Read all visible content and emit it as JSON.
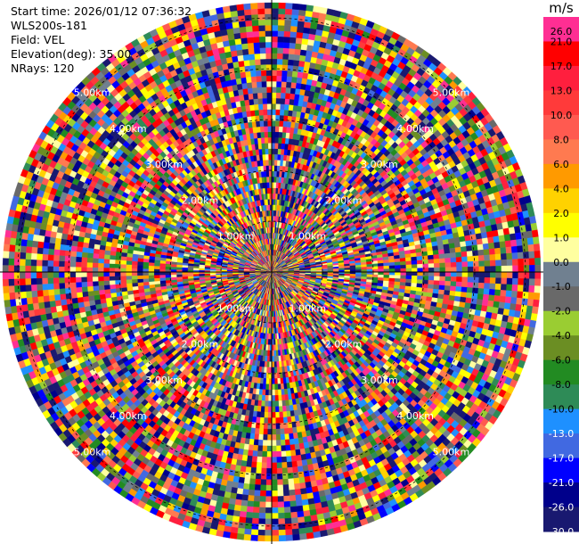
{
  "info": {
    "start_time": "Start time: 2026/01/12 07:36:32",
    "site": "WLS200s-181",
    "field": "Field: VEL",
    "elevation": "Elevation(deg): 35.00",
    "nrays": "NRays: 120"
  },
  "colorbar": {
    "unit": "m/s",
    "labels": [
      "26.0",
      "21.0",
      "17.0",
      "13.0",
      "10.0",
      "8.0",
      "6.0",
      "4.0",
      "2.0",
      "1.0",
      "0.0",
      "-1.0",
      "-2.0",
      "-4.0",
      "-6.0",
      "-8.0",
      "-10.0",
      "-13.0",
      "-17.0",
      "-21.0",
      "-26.0",
      "-30.0"
    ],
    "colors": [
      "#FF2E93",
      "#FF0000",
      "#FF1F3E",
      "#FF3A3A",
      "#FF5A50",
      "#FF7A50",
      "#FF9A00",
      "#FFD200",
      "#FFFF00",
      "#FFFFA0",
      "#708090",
      "#696969",
      "#9ACD32",
      "#6B8E23",
      "#228B22",
      "#2E8B57",
      "#1E90FF",
      "#4169E1",
      "#0000FF",
      "#00008B",
      "#191970",
      "#191970"
    ]
  },
  "chart_data": {
    "type": "heatmap",
    "projection": "polar-ppi",
    "field": "VEL",
    "elevation_deg": 35.0,
    "n_rays": 120,
    "range_rings": [
      {
        "label": "1.00km",
        "km": 1
      },
      {
        "label": "2.00km",
        "km": 2
      },
      {
        "label": "3.00km",
        "km": 3
      },
      {
        "label": "4.00km",
        "km": 4
      },
      {
        "label": "5.00km",
        "km": 5
      }
    ],
    "max_range_km": 5.3,
    "value_range": [
      -30,
      30
    ],
    "grid": true
  }
}
